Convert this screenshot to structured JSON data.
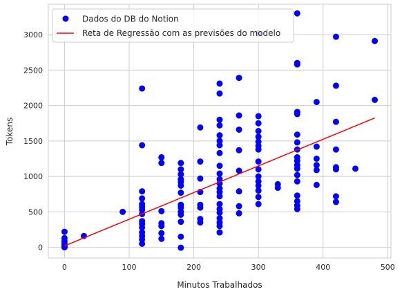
{
  "chart_data": {
    "type": "scatter",
    "title": "",
    "xlabel": "Minutos Trabalhados",
    "ylabel": "Tokens",
    "xlim": [
      -25,
      505
    ],
    "ylim": [
      -150,
      3430
    ],
    "xticks": [
      0,
      100,
      200,
      300,
      400,
      500
    ],
    "yticks": [
      0,
      500,
      1000,
      1500,
      2000,
      2500,
      3000
    ],
    "grid": true,
    "legend_position": "top-left",
    "series": [
      {
        "name": "Dados do DB do Notion",
        "kind": "scatter",
        "color": "#0000ff",
        "points": [
          [
            0,
            0
          ],
          [
            0,
            10
          ],
          [
            0,
            30
          ],
          [
            0,
            60
          ],
          [
            0,
            90
          ],
          [
            0,
            130
          ],
          [
            0,
            220
          ],
          [
            30,
            160
          ],
          [
            90,
            500
          ],
          [
            120,
            50
          ],
          [
            120,
            110
          ],
          [
            120,
            160
          ],
          [
            120,
            210
          ],
          [
            120,
            280
          ],
          [
            120,
            330
          ],
          [
            120,
            370
          ],
          [
            120,
            470
          ],
          [
            120,
            530
          ],
          [
            120,
            570
          ],
          [
            120,
            610
          ],
          [
            120,
            690
          ],
          [
            120,
            790
          ],
          [
            120,
            1440
          ],
          [
            120,
            2240
          ],
          [
            150,
            120
          ],
          [
            150,
            200
          ],
          [
            150,
            300
          ],
          [
            150,
            340
          ],
          [
            150,
            510
          ],
          [
            150,
            1190
          ],
          [
            150,
            1270
          ],
          [
            180,
            -5
          ],
          [
            180,
            150
          ],
          [
            180,
            360
          ],
          [
            180,
            460
          ],
          [
            180,
            500
          ],
          [
            180,
            560
          ],
          [
            180,
            600
          ],
          [
            180,
            770
          ],
          [
            180,
            870
          ],
          [
            180,
            920
          ],
          [
            180,
            960
          ],
          [
            180,
            1030
          ],
          [
            180,
            1100
          ],
          [
            180,
            1190
          ],
          [
            210,
            350
          ],
          [
            210,
            400
          ],
          [
            210,
            560
          ],
          [
            210,
            600
          ],
          [
            210,
            780
          ],
          [
            210,
            970
          ],
          [
            210,
            1210
          ],
          [
            210,
            1690
          ],
          [
            240,
            210
          ],
          [
            240,
            300
          ],
          [
            240,
            350
          ],
          [
            240,
            410
          ],
          [
            240,
            490
          ],
          [
            240,
            540
          ],
          [
            240,
            610
          ],
          [
            240,
            720
          ],
          [
            240,
            780
          ],
          [
            240,
            830
          ],
          [
            240,
            900
          ],
          [
            240,
            960
          ],
          [
            240,
            1040
          ],
          [
            240,
            1150
          ],
          [
            240,
            1330
          ],
          [
            240,
            1440
          ],
          [
            240,
            1500
          ],
          [
            240,
            1580
          ],
          [
            240,
            1720
          ],
          [
            240,
            1800
          ],
          [
            240,
            2170
          ],
          [
            240,
            2310
          ],
          [
            270,
            480
          ],
          [
            270,
            580
          ],
          [
            270,
            790
          ],
          [
            270,
            1080
          ],
          [
            270,
            1370
          ],
          [
            270,
            1660
          ],
          [
            270,
            1860
          ],
          [
            270,
            2390
          ],
          [
            300,
            610
          ],
          [
            300,
            710
          ],
          [
            300,
            800
          ],
          [
            300,
            870
          ],
          [
            300,
            930
          ],
          [
            300,
            1000
          ],
          [
            300,
            1100
          ],
          [
            300,
            1210
          ],
          [
            300,
            1380
          ],
          [
            300,
            1430
          ],
          [
            300,
            1490
          ],
          [
            300,
            1560
          ],
          [
            300,
            1640
          ],
          [
            300,
            1750
          ],
          [
            300,
            1850
          ],
          [
            300,
            3020
          ],
          [
            330,
            840
          ],
          [
            330,
            890
          ],
          [
            360,
            540
          ],
          [
            360,
            590
          ],
          [
            360,
            650
          ],
          [
            360,
            730
          ],
          [
            360,
            930
          ],
          [
            360,
            1020
          ],
          [
            360,
            1110
          ],
          [
            360,
            1160
          ],
          [
            360,
            1220
          ],
          [
            360,
            1270
          ],
          [
            360,
            1380
          ],
          [
            360,
            1480
          ],
          [
            360,
            1590
          ],
          [
            360,
            1880
          ],
          [
            360,
            1910
          ],
          [
            360,
            2580
          ],
          [
            360,
            2600
          ],
          [
            360,
            3300
          ],
          [
            390,
            880
          ],
          [
            390,
            1090
          ],
          [
            390,
            1160
          ],
          [
            390,
            1250
          ],
          [
            390,
            1420
          ],
          [
            390,
            2050
          ],
          [
            420,
            640
          ],
          [
            420,
            720
          ],
          [
            420,
            1100
          ],
          [
            420,
            1130
          ],
          [
            420,
            1380
          ],
          [
            420,
            1770
          ],
          [
            420,
            2280
          ],
          [
            420,
            2970
          ],
          [
            450,
            1110
          ],
          [
            480,
            2080
          ],
          [
            480,
            2910
          ]
        ]
      },
      {
        "name": "Reta de Regressão com as previsões do modelo",
        "kind": "line",
        "color": "#ff0000",
        "x": [
          0,
          480
        ],
        "y": [
          20,
          1825
        ]
      }
    ]
  }
}
